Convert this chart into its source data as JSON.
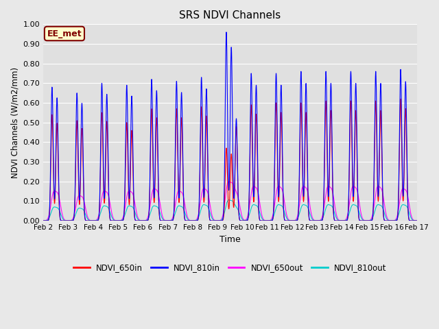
{
  "title": "SRS NDVI Channels",
  "xlabel": "Time",
  "ylabel": "NDVI Channels (W/m2/mm)",
  "ylim": [
    0.0,
    1.0
  ],
  "background_color": "#e8e8e8",
  "plot_bg_color": "#e0e0e0",
  "annotation_text": "EE_met",
  "annotation_bg": "#ffffcc",
  "annotation_border": "#800000",
  "annotation_text_color": "#800000",
  "legend_labels": [
    "NDVI_650in",
    "NDVI_810in",
    "NDVI_650out",
    "NDVI_810out"
  ],
  "legend_colors": [
    "#ff0000",
    "#0000ff",
    "#ff00ff",
    "#00cccc"
  ],
  "num_days": 15,
  "day_labels": [
    "Feb 2",
    "Feb 3",
    "Feb 4",
    "Feb 5",
    "Feb 6",
    "Feb 7",
    "Feb 8",
    "Feb 9",
    "Feb 10",
    "Feb 11",
    "Feb 12",
    "Feb 13",
    "Feb 14",
    "Feb 15",
    "Feb 16",
    "Feb 17"
  ],
  "day_peaks_810in": [
    0.68,
    0.65,
    0.7,
    0.69,
    0.72,
    0.71,
    0.73,
    0.96,
    0.75,
    0.75,
    0.76,
    0.76,
    0.76,
    0.76,
    0.77
  ],
  "day_peaks_650in": [
    0.54,
    0.51,
    0.55,
    0.5,
    0.57,
    0.57,
    0.58,
    0.37,
    0.59,
    0.6,
    0.6,
    0.61,
    0.61,
    0.61,
    0.62
  ],
  "day_peaks_650out": [
    0.13,
    0.11,
    0.13,
    0.13,
    0.14,
    0.13,
    0.14,
    0.17,
    0.15,
    0.15,
    0.15,
    0.15,
    0.15,
    0.15,
    0.14
  ],
  "day_peaks_810out": [
    0.06,
    0.055,
    0.065,
    0.065,
    0.065,
    0.065,
    0.07,
    0.09,
    0.07,
    0.07,
    0.07,
    0.07,
    0.07,
    0.07,
    0.07
  ],
  "day9_810in_secondary": 0.52,
  "day9_650in_secondary": 0.48,
  "yticks": [
    0.0,
    0.1,
    0.2,
    0.3,
    0.4,
    0.5,
    0.6,
    0.7,
    0.8,
    0.9,
    1.0
  ]
}
